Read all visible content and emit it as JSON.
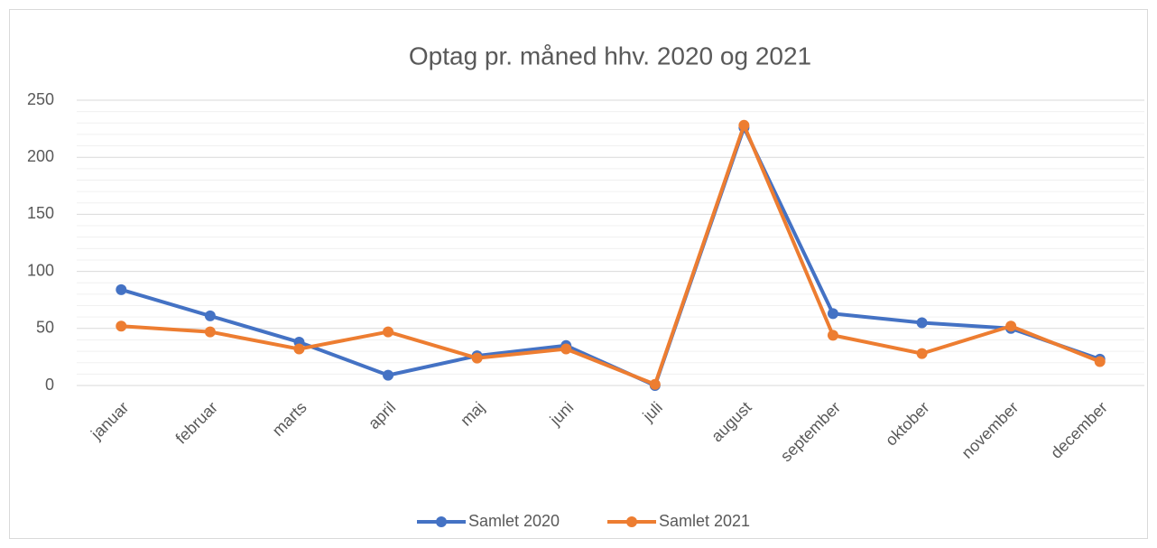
{
  "chart_data": {
    "type": "line",
    "title": "Optag pr. måned hhv. 2020 og 2021",
    "categories": [
      "januar",
      "februar",
      "marts",
      "april",
      "maj",
      "juni",
      "juli",
      "august",
      "september",
      "oktober",
      "november",
      "december"
    ],
    "series": [
      {
        "name": "Samlet 2020",
        "color": "#4472c4",
        "values": [
          84,
          61,
          38,
          9,
          26,
          35,
          0,
          226,
          63,
          55,
          50,
          23
        ]
      },
      {
        "name": "Samlet 2021",
        "color": "#ed7d31",
        "values": [
          52,
          47,
          32,
          47,
          24,
          32,
          1,
          228,
          44,
          28,
          52,
          21
        ]
      }
    ],
    "ylim": [
      0,
      250
    ],
    "yticks": [
      0,
      50,
      100,
      150,
      200,
      250
    ],
    "grid": true,
    "minor_grid": true,
    "legend": "bottom"
  }
}
